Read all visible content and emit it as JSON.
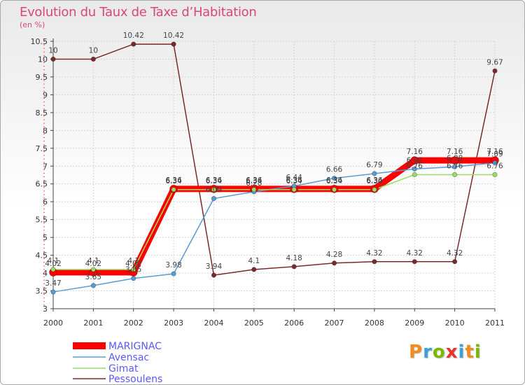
{
  "header": {
    "title": "Evolution du Taux de Taxe d’Habitation",
    "unit": "(en %)"
  },
  "logo": {
    "text": "Proxiti",
    "colors": [
      "#f28c1e",
      "#3aa0d8",
      "#7ab800",
      "#e8342a",
      "#3aa0d8",
      "#f28c1e",
      "#7ab800"
    ]
  },
  "chart_data": {
    "type": "line",
    "categories": [
      "2000",
      "2001",
      "2002",
      "2003",
      "2004",
      "2005",
      "2006",
      "2007",
      "2008",
      "2009",
      "2010",
      "2011"
    ],
    "ylim": [
      3,
      10.5
    ],
    "yticks": [
      "3",
      "3.5",
      "4",
      "4.5",
      "5",
      "5.5",
      "6",
      "6.5",
      "7",
      "7.5",
      "8",
      "8.5",
      "9",
      "9.5",
      "10",
      "10.5"
    ],
    "series": [
      {
        "name": "MARIGNAC",
        "color": "#ff0000",
        "values": [
          4.02,
          4.02,
          4.02,
          6.36,
          6.36,
          6.36,
          6.36,
          6.36,
          6.36,
          7.16,
          7.16,
          7.16
        ]
      },
      {
        "name": "Avensac",
        "color": "#5b9bd5",
        "values": [
          3.47,
          3.65,
          3.85,
          3.98,
          6.09,
          6.28,
          6.44,
          6.66,
          6.79,
          6.92,
          6.98,
          7.09
        ]
      },
      {
        "name": "Gimat",
        "color": "#99dd66",
        "values": [
          4.1,
          4.1,
          4.1,
          6.34,
          6.34,
          6.34,
          6.34,
          6.34,
          6.34,
          6.76,
          6.76,
          6.76
        ]
      },
      {
        "name": "Pessoulens",
        "color": "#7a2a2a",
        "values": [
          10,
          10,
          10.42,
          10.42,
          3.94,
          4.1,
          4.18,
          4.28,
          4.32,
          4.32,
          4.32,
          9.67
        ]
      }
    ],
    "labels": [
      {
        "series": "Pessoulens",
        "texts": [
          "10",
          "10",
          "10.42",
          "10.42",
          "3.94",
          "4.1",
          "4.18",
          "4.28",
          "4.32",
          "4.32",
          "4.32",
          "9.67"
        ]
      },
      {
        "series": "MARIGNAC",
        "texts": [
          "4.02",
          "4.02",
          "4.02",
          "6.36",
          "6.36",
          "6.36",
          "6.36",
          "6.36",
          "6.36",
          "7.16",
          "7.16",
          "7.16"
        ]
      },
      {
        "series": "Gimat",
        "texts": [
          "4.1",
          "4.1",
          "4.1",
          "6.34",
          "6.34",
          "6.34",
          "6.34",
          "6.34",
          "6.34",
          "6.76",
          "6.76",
          "6.76"
        ]
      },
      {
        "series": "Avensac",
        "texts": [
          "3.47",
          "3.65",
          "3.85",
          "3.98",
          "6.09",
          "6.28",
          "6.44",
          "6.66",
          "6.79",
          "6.92",
          "6.98",
          "7.09"
        ]
      }
    ],
    "legend": [
      "MARIGNAC",
      "Avensac",
      "Gimat",
      "Pessoulens"
    ],
    "title": "Evolution du Taux de Taxe d’Habitation",
    "ylabel": "(en %)",
    "xlabel": ""
  }
}
